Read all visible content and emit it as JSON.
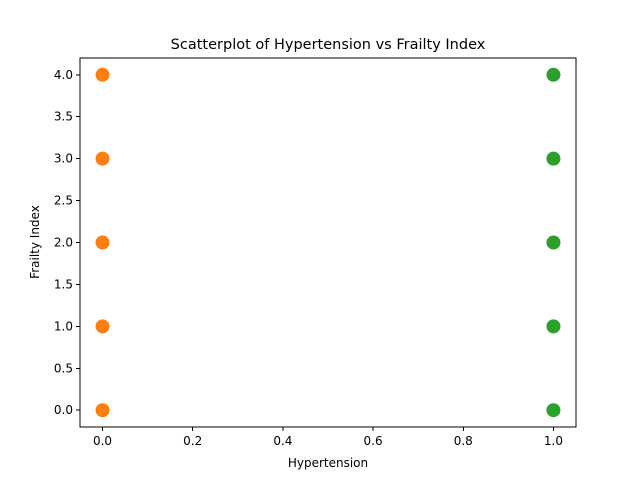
{
  "chart_data": {
    "type": "scatter",
    "title": "Scatterplot of Hypertension vs Frailty Index",
    "xlabel": "Hypertension",
    "ylabel": "Frailty Index",
    "xlim": [
      -0.05,
      1.05
    ],
    "ylim": [
      -0.2,
      4.2
    ],
    "x_ticks": [
      0.0,
      0.2,
      0.4,
      0.6,
      0.8,
      1.0
    ],
    "x_tick_labels": [
      "0.0",
      "0.2",
      "0.4",
      "0.6",
      "0.8",
      "1.0"
    ],
    "y_ticks": [
      0.0,
      0.5,
      1.0,
      1.5,
      2.0,
      2.5,
      3.0,
      3.5,
      4.0
    ],
    "y_tick_labels": [
      "0.0",
      "0.5",
      "1.0",
      "1.5",
      "2.0",
      "2.5",
      "3.0",
      "3.5",
      "4.0"
    ],
    "grid": false,
    "legend": false,
    "series": [
      {
        "color": "#ff7f0e",
        "points": [
          {
            "x": 0,
            "y": 0
          },
          {
            "x": 0,
            "y": 1
          },
          {
            "x": 0,
            "y": 2
          },
          {
            "x": 0,
            "y": 3
          },
          {
            "x": 0,
            "y": 4
          }
        ]
      },
      {
        "color": "#2ca02c",
        "points": [
          {
            "x": 1,
            "y": 0
          },
          {
            "x": 1,
            "y": 1
          },
          {
            "x": 1,
            "y": 2
          },
          {
            "x": 1,
            "y": 3
          },
          {
            "x": 1,
            "y": 4
          }
        ]
      }
    ]
  }
}
